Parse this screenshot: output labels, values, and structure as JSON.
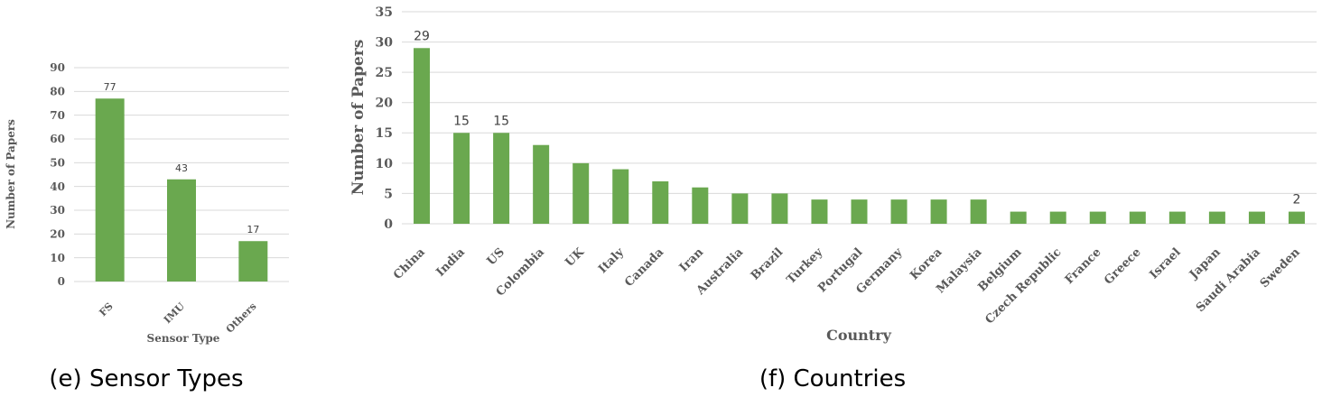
{
  "chart_data": [
    {
      "type": "bar",
      "title": "",
      "caption": "(e) Sensor Types",
      "xlabel": "Sensor Type",
      "ylabel": "Number of Papers",
      "ylim": [
        0,
        90
      ],
      "yticks": [
        0,
        10,
        20,
        30,
        40,
        50,
        60,
        70,
        80,
        90
      ],
      "categories": [
        "FS",
        "IMU",
        "Others"
      ],
      "values": [
        77,
        43,
        17
      ],
      "data_labels": [
        "77",
        "43",
        "17"
      ],
      "bar_color": "#6aa84f",
      "grid": true
    },
    {
      "type": "bar",
      "title": "",
      "caption": "(f) Countries",
      "xlabel": "Country",
      "ylabel": "Number of Papers",
      "ylim": [
        0,
        35
      ],
      "yticks": [
        0,
        5,
        10,
        15,
        20,
        25,
        30,
        35
      ],
      "categories": [
        "China",
        "India",
        "US",
        "Colombia",
        "UK",
        "Italy",
        "Canada",
        "Iran",
        "Australia",
        "Brazil",
        "Turkey",
        "Portugal",
        "Germany",
        "Korea",
        "Malaysia",
        "Belgium",
        "Czech Republic",
        "France",
        "Greece",
        "Israel",
        "Japan",
        "Saudi Arabia",
        "Sweden"
      ],
      "values": [
        29,
        15,
        15,
        13,
        10,
        9,
        7,
        6,
        5,
        5,
        4,
        4,
        4,
        4,
        4,
        2,
        2,
        2,
        2,
        2,
        2,
        2,
        2
      ],
      "data_labels": [
        "29",
        "15",
        "15",
        "",
        "",
        "",
        "",
        "",
        "",
        "",
        "",
        "",
        "",
        "",
        "",
        "",
        "",
        "",
        "",
        "",
        "",
        "",
        "2"
      ],
      "bar_color": "#6aa84f",
      "grid": true
    }
  ]
}
